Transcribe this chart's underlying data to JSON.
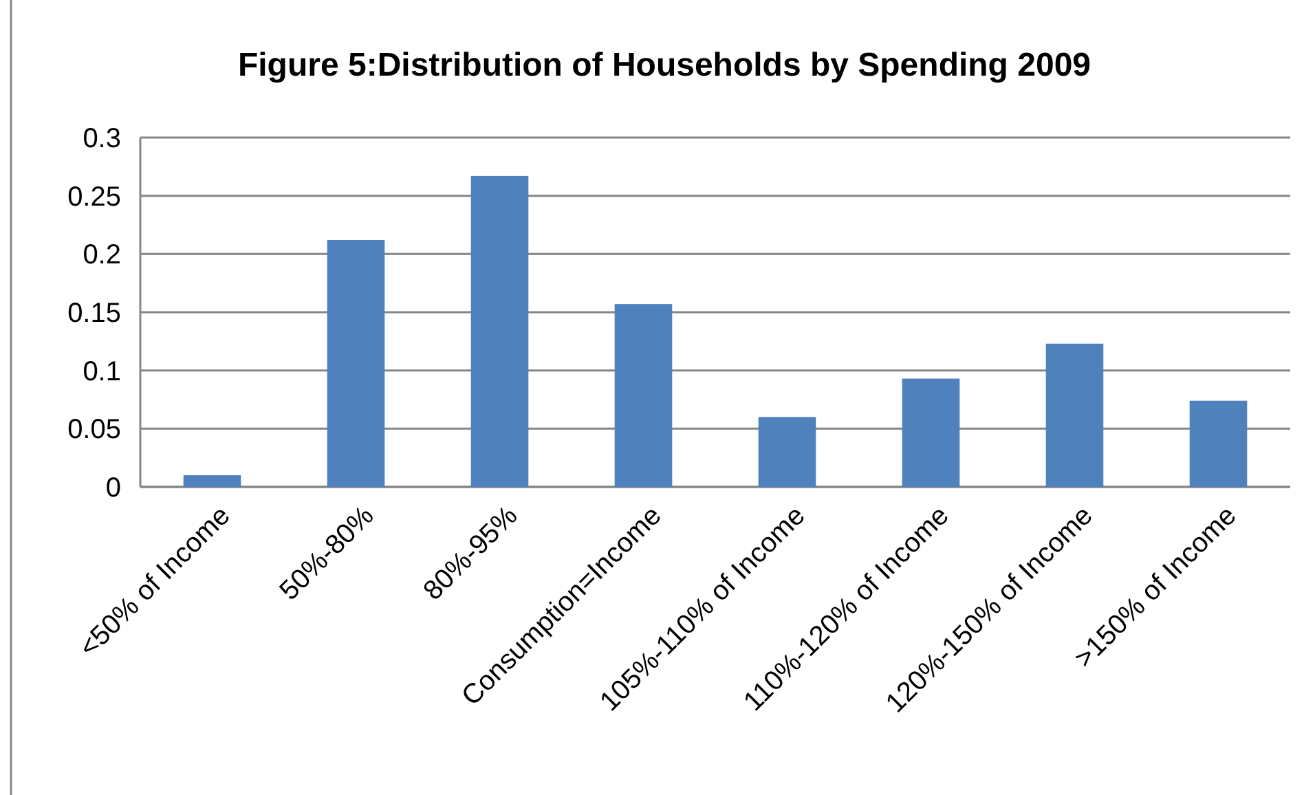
{
  "chart_data": {
    "type": "bar",
    "title": "Figure 5:Distribution of Households by Spending 2009",
    "categories": [
      "<50% of Income",
      "50%-80%",
      "80%-95%",
      "Consumption=Income",
      "105%-110% of Income",
      "110%-120% of Income",
      "120%-150% of Income",
      ">150% of Income"
    ],
    "values": [
      0.01,
      0.212,
      0.267,
      0.157,
      0.06,
      0.093,
      0.123,
      0.074
    ],
    "color": "#4f81bd",
    "ylim": [
      0,
      0.3
    ],
    "yticks": [
      0,
      0.05,
      0.1,
      0.15,
      0.2,
      0.25,
      0.3
    ],
    "grid": "y"
  }
}
